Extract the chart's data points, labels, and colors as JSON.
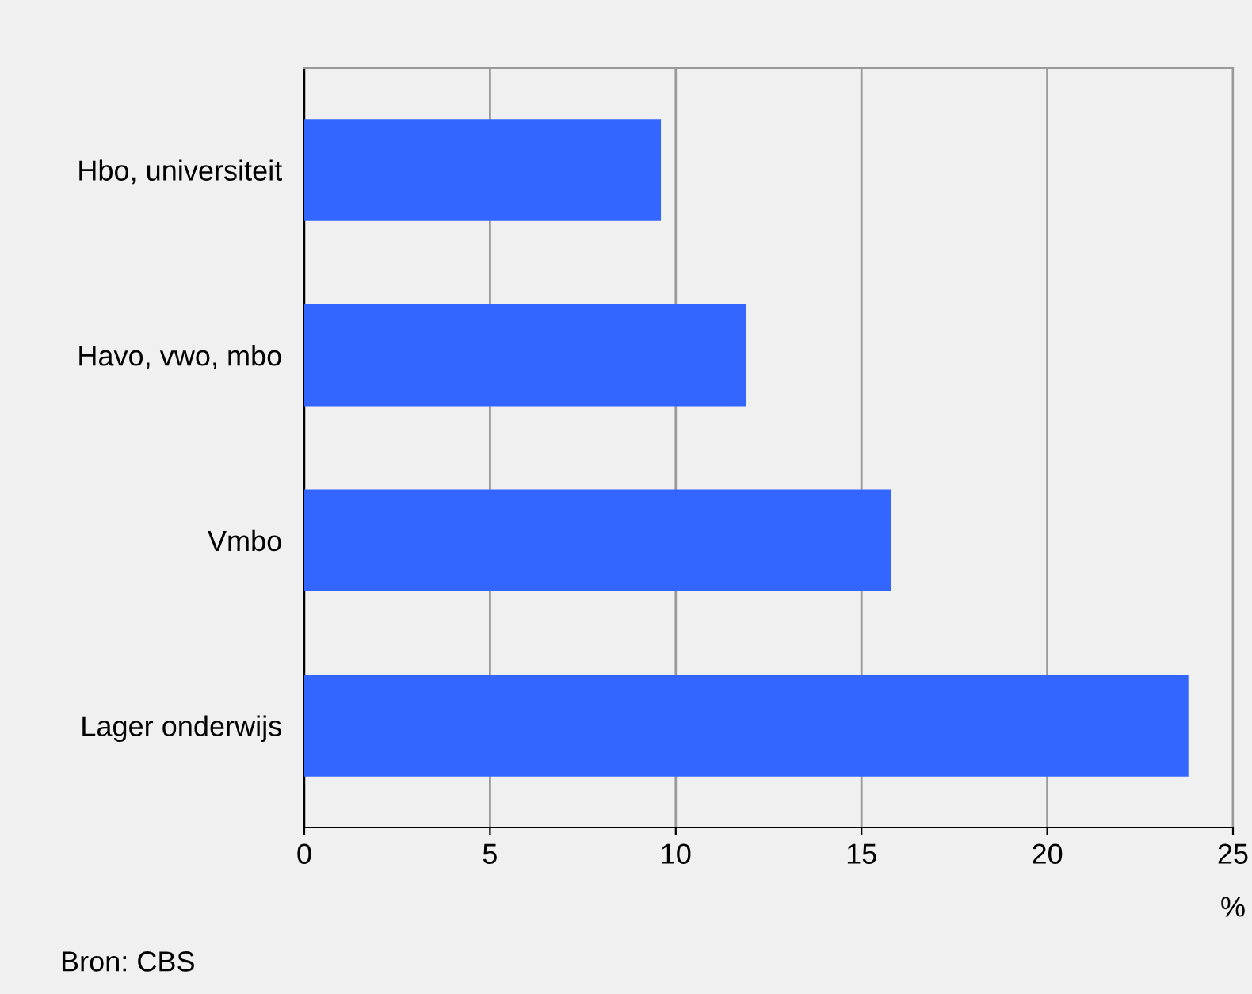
{
  "chart_data": {
    "type": "bar",
    "orientation": "horizontal",
    "categories": [
      "Hbo, universiteit",
      "Havo, vwo, mbo",
      "Vmbo",
      "Lager onderwijs"
    ],
    "values": [
      9.6,
      11.9,
      15.8,
      23.8
    ],
    "color": "#3366ff",
    "xlim": [
      0,
      25
    ],
    "xticks": [
      0,
      5,
      10,
      15,
      20,
      25
    ],
    "xlabel": "%",
    "grid": "x",
    "annotations": [
      "Bron: CBS"
    ]
  }
}
